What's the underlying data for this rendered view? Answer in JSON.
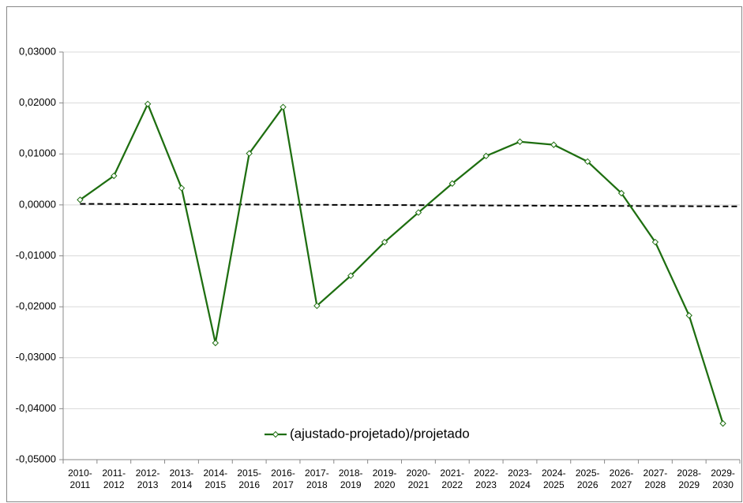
{
  "chart_data": {
    "type": "line",
    "categories": [
      "2010-2011",
      "2011-2012",
      "2012-2013",
      "2013-2014",
      "2014-2015",
      "2015-2016",
      "2016-2017",
      "2017-2018",
      "2018-2019",
      "2019-2020",
      "2020-2021",
      "2021-2022",
      "2022-2023",
      "2023-2024",
      "2024-2025",
      "2025-2026",
      "2026-2027",
      "2027-2028",
      "2028-2029",
      "2029-2030"
    ],
    "series": [
      {
        "name": "(ajustado-projetado)/projetado",
        "color": "#1e6e10",
        "values": [
          0.001,
          0.0057,
          0.0198,
          0.0033,
          -0.0271,
          0.0101,
          0.0192,
          -0.0198,
          -0.0139,
          -0.0073,
          -0.0015,
          0.0042,
          0.0096,
          0.0124,
          0.0118,
          0.0085,
          0.0023,
          -0.0073,
          -0.0217,
          -0.0429
        ]
      }
    ],
    "trendline": {
      "color": "#000000",
      "values": [
        0.0002,
        -0.0003
      ]
    },
    "ylim": [
      -0.05,
      0.03
    ],
    "yticks": [
      {
        "value": -0.05,
        "label": "-0,05000"
      },
      {
        "value": -0.04,
        "label": "-0,04000"
      },
      {
        "value": -0.03,
        "label": "-0,03000"
      },
      {
        "value": -0.02,
        "label": "-0,02000"
      },
      {
        "value": -0.01,
        "label": "-0,01000"
      },
      {
        "value": 0,
        "label": "0,00000"
      },
      {
        "value": 0.01,
        "label": "0,01000"
      },
      {
        "value": 0.02,
        "label": "0,02000"
      },
      {
        "value": 0.03,
        "label": "0,03000"
      }
    ],
    "grid": true,
    "legend": "bottom"
  }
}
